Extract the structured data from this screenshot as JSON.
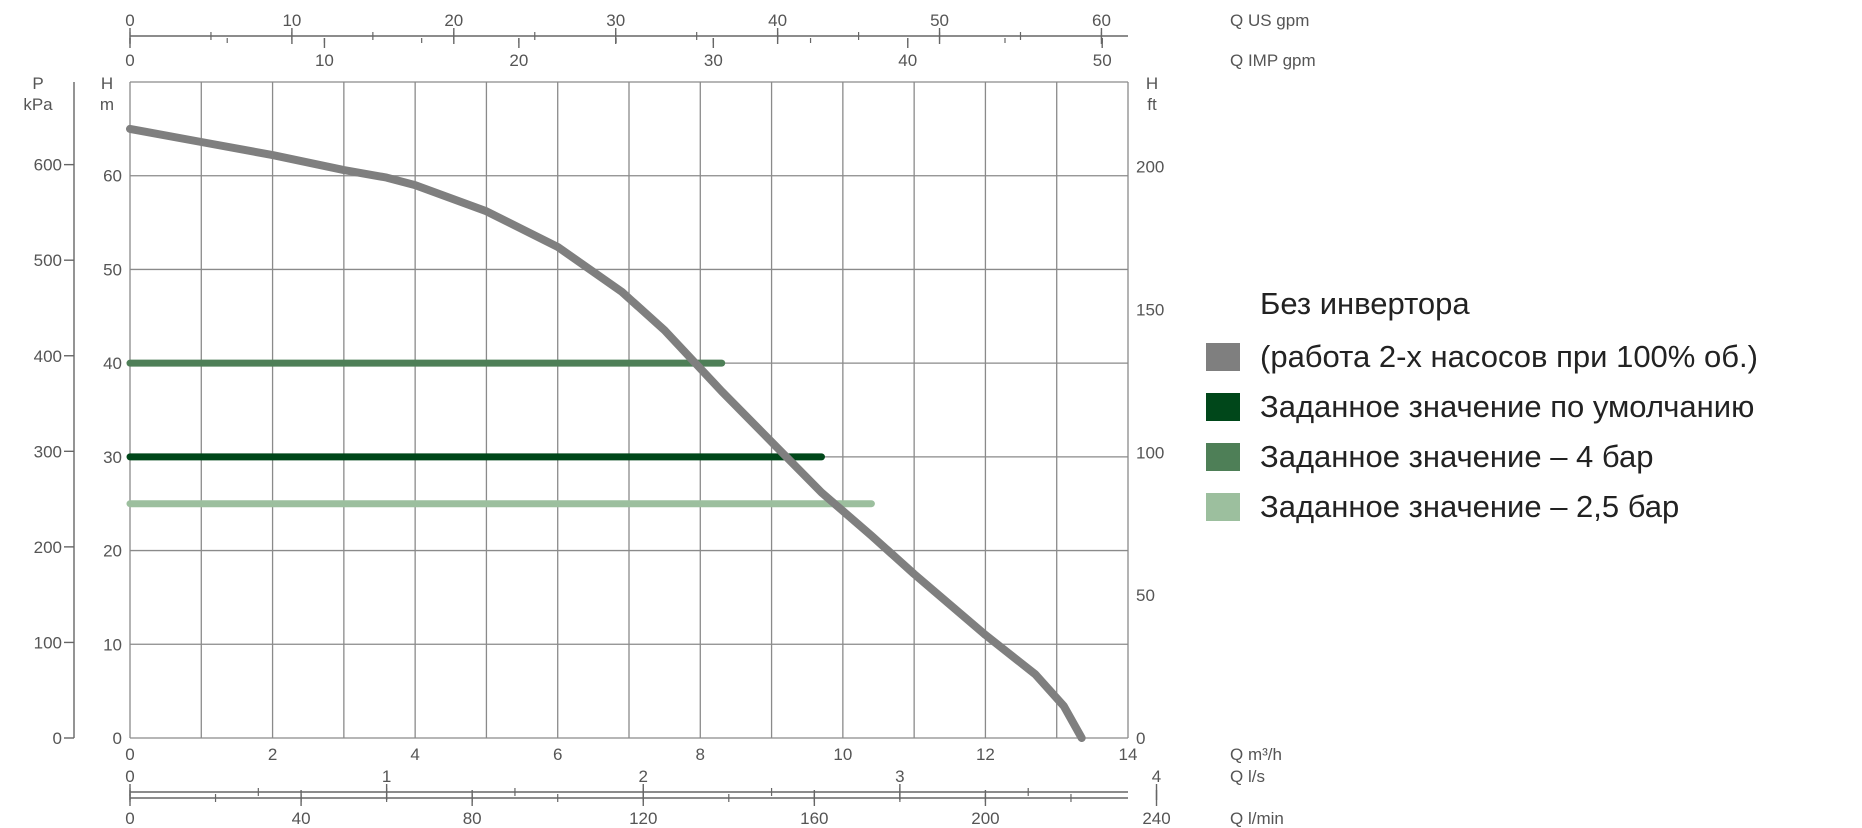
{
  "chart_data": {
    "type": "line",
    "x_axis": {
      "label": "Q m³/h",
      "ticks": [
        0,
        2,
        4,
        6,
        8,
        10,
        12,
        14
      ],
      "range": [
        0,
        14
      ]
    },
    "y_axis_left": {
      "label_line1": "H",
      "label_line2": "m",
      "ticks": [
        0,
        10,
        20,
        30,
        40,
        50,
        60
      ],
      "range": [
        0,
        70
      ]
    },
    "y_axis_pressure": {
      "label_line1": "P",
      "label_line2": "kPa",
      "ticks": [
        0,
        100,
        200,
        300,
        400,
        500,
        600
      ]
    },
    "y_axis_right": {
      "label_line1": "H",
      "label_line2": "ft",
      "ticks": [
        0,
        50,
        100,
        150,
        200
      ]
    },
    "top_axis_us": {
      "label": "Q US gpm",
      "ticks": [
        0,
        10,
        20,
        30,
        40,
        50,
        60
      ]
    },
    "top_axis_imp": {
      "label": "Q IMP gpm",
      "ticks": [
        0,
        10,
        20,
        30,
        40,
        50
      ]
    },
    "bottom_axis_ls": {
      "label": "Q l/s",
      "ticks": [
        0,
        1,
        2,
        3,
        4
      ]
    },
    "bottom_axis_lmin": {
      "label": "Q l/min",
      "ticks": [
        0,
        40,
        80,
        120,
        160,
        200,
        240
      ]
    },
    "grid": true,
    "legend_position": "right",
    "legend_title": "Без инвертора",
    "series": [
      {
        "name": "(работа 2-х насосов при 100% об.)",
        "color": "#7f7f7f",
        "x": [
          0,
          1,
          2,
          3,
          3.6,
          4,
          5,
          6,
          6.9,
          7.5,
          8.3,
          9,
          9.7,
          10.4,
          11,
          12,
          12.7,
          13.1,
          13.35
        ],
        "y": [
          65,
          63.6,
          62.2,
          60.6,
          59.8,
          59,
          56.2,
          52.4,
          47.6,
          43.5,
          37,
          31.6,
          26.2,
          21.6,
          17.5,
          11,
          6.8,
          3.4,
          0
        ]
      },
      {
        "name": "Заданное значение по умолчанию",
        "color": "#00471a",
        "x": [
          0,
          9.7
        ],
        "y": [
          30,
          30
        ]
      },
      {
        "name": "Заданное значение – 4 бар",
        "color": "#4e7f57",
        "x": [
          0,
          8.3
        ],
        "y": [
          40,
          40
        ]
      },
      {
        "name": "Заданное значение – 2,5 бар",
        "color": "#9cbf9e",
        "x": [
          0,
          10.4
        ],
        "y": [
          25,
          25
        ]
      }
    ]
  }
}
